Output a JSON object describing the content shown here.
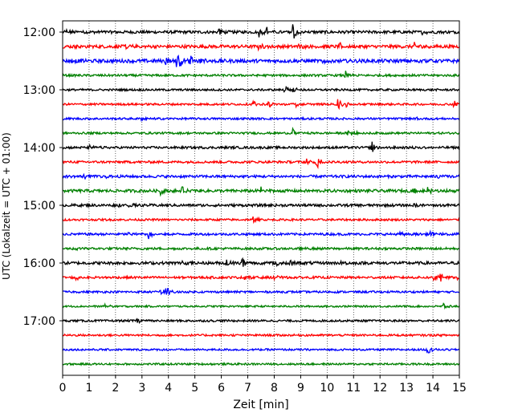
{
  "chart_data": {
    "type": "line",
    "title": "",
    "xlabel": "Zeit  [min]",
    "ylabel": "UTC (Lokalzeit = UTC + 01:00)",
    "xlim": [
      0,
      15
    ],
    "x_ticks": [
      "0",
      "1",
      "2",
      "3",
      "4",
      "5",
      "6",
      "7",
      "8",
      "9",
      "10",
      "11",
      "12",
      "13",
      "14",
      "15"
    ],
    "y_tick_labels": [
      "12:00",
      "13:00",
      "14:00",
      "15:00",
      "16:00",
      "17:00"
    ],
    "grid": "vertical dotted lines at each minute",
    "trace_start_time": "12:00",
    "trace_interval_minutes": 15,
    "trace_colors": [
      "#000000",
      "#ff0000",
      "#0000ff",
      "#008000"
    ],
    "traces": [
      {
        "start": "12:00",
        "color": "#000000",
        "noise": 0.2,
        "events": [
          {
            "t": 0.15,
            "amp": 0.35
          },
          {
            "t": 1.3,
            "amp": 0.3
          },
          {
            "t": 5.9,
            "amp": 0.6
          },
          {
            "t": 7.4,
            "amp": 0.9
          },
          {
            "t": 7.7,
            "amp": 0.8
          },
          {
            "t": 8.7,
            "amp": 1.5
          },
          {
            "t": 13.6,
            "amp": 0.4
          }
        ]
      },
      {
        "start": "12:15",
        "color": "#ff0000",
        "noise": 0.22,
        "events": [
          {
            "t": 0.5,
            "amp": 0.3
          },
          {
            "t": 2.4,
            "amp": 0.5
          },
          {
            "t": 7.4,
            "amp": 0.4
          },
          {
            "t": 8.9,
            "amp": 0.45
          },
          {
            "t": 10.5,
            "amp": 0.45
          },
          {
            "t": 13.3,
            "amp": 0.45
          }
        ]
      },
      {
        "start": "12:30",
        "color": "#0000ff",
        "noise": 0.24,
        "events": [
          {
            "t": 0.3,
            "amp": 0.3
          },
          {
            "t": 3.9,
            "amp": 0.7
          },
          {
            "t": 4.3,
            "amp": 2.2
          },
          {
            "t": 4.8,
            "amp": 1.2
          },
          {
            "t": 5.2,
            "amp": 0.6
          },
          {
            "t": 9.8,
            "amp": 0.4
          },
          {
            "t": 13.4,
            "amp": 0.3
          }
        ]
      },
      {
        "start": "12:45",
        "color": "#008000",
        "noise": 0.15,
        "events": [
          {
            "t": 10.7,
            "amp": 0.7
          }
        ]
      },
      {
        "start": "13:00",
        "color": "#000000",
        "noise": 0.14,
        "events": [
          {
            "t": 8.4,
            "amp": 0.5
          },
          {
            "t": 8.7,
            "amp": 0.45
          }
        ]
      },
      {
        "start": "13:15",
        "color": "#ff0000",
        "noise": 0.14,
        "events": [
          {
            "t": 7.2,
            "amp": 0.4
          },
          {
            "t": 7.8,
            "amp": 0.45
          },
          {
            "t": 8.8,
            "amp": 0.4
          },
          {
            "t": 10.4,
            "amp": 1.0
          },
          {
            "t": 10.7,
            "amp": 0.5
          },
          {
            "t": 14.8,
            "amp": 0.8
          }
        ]
      },
      {
        "start": "13:30",
        "color": "#0000ff",
        "noise": 0.14,
        "events": [
          {
            "t": 3.0,
            "amp": 0.3
          },
          {
            "t": 13.4,
            "amp": 0.3
          }
        ]
      },
      {
        "start": "13:45",
        "color": "#008000",
        "noise": 0.14,
        "events": [
          {
            "t": 8.7,
            "amp": 0.6
          },
          {
            "t": 10.8,
            "amp": 0.75
          },
          {
            "t": 11.0,
            "amp": 0.4
          }
        ]
      },
      {
        "start": "14:00",
        "color": "#000000",
        "noise": 0.16,
        "events": [
          {
            "t": 1.0,
            "amp": 0.3
          },
          {
            "t": 11.7,
            "amp": 0.9
          },
          {
            "t": 13.3,
            "amp": 0.35
          }
        ]
      },
      {
        "start": "14:15",
        "color": "#ff0000",
        "noise": 0.16,
        "events": [
          {
            "t": 9.2,
            "amp": 0.5
          },
          {
            "t": 9.6,
            "amp": 1.1
          }
        ]
      },
      {
        "start": "14:30",
        "color": "#0000ff",
        "noise": 0.18,
        "events": [
          {
            "t": 0.8,
            "amp": 0.3
          },
          {
            "t": 1.6,
            "amp": 0.35
          },
          {
            "t": 14.2,
            "amp": 0.3
          }
        ]
      },
      {
        "start": "14:45",
        "color": "#008000",
        "noise": 0.2,
        "events": [
          {
            "t": 3.7,
            "amp": 0.6
          },
          {
            "t": 4.5,
            "amp": 0.55
          },
          {
            "t": 7.5,
            "amp": 0.5
          },
          {
            "t": 13.3,
            "amp": 0.45
          },
          {
            "t": 13.8,
            "amp": 0.6
          }
        ]
      },
      {
        "start": "15:00",
        "color": "#000000",
        "noise": 0.18,
        "events": [
          {
            "t": 2.1,
            "amp": 0.3
          },
          {
            "t": 2.5,
            "amp": 0.3
          },
          {
            "t": 13.3,
            "amp": 0.3
          }
        ]
      },
      {
        "start": "15:15",
        "color": "#ff0000",
        "noise": 0.14,
        "events": [
          {
            "t": 7.2,
            "amp": 0.45
          }
        ]
      },
      {
        "start": "15:30",
        "color": "#0000ff",
        "noise": 0.16,
        "events": [
          {
            "t": 2.5,
            "amp": 0.3
          },
          {
            "t": 3.2,
            "amp": 0.9
          },
          {
            "t": 12.7,
            "amp": 0.35
          },
          {
            "t": 13.9,
            "amp": 0.35
          }
        ]
      },
      {
        "start": "15:45",
        "color": "#008000",
        "noise": 0.16,
        "events": [
          {
            "t": 0.5,
            "amp": 0.35
          },
          {
            "t": 8.8,
            "amp": 0.3
          }
        ]
      },
      {
        "start": "16:00",
        "color": "#000000",
        "noise": 0.2,
        "events": [
          {
            "t": 4.5,
            "amp": 0.35
          },
          {
            "t": 6.2,
            "amp": 0.6
          },
          {
            "t": 6.8,
            "amp": 0.9
          },
          {
            "t": 8.1,
            "amp": 0.7
          },
          {
            "t": 8.6,
            "amp": 0.5
          },
          {
            "t": 10.5,
            "amp": 0.3
          }
        ]
      },
      {
        "start": "16:15",
        "color": "#ff0000",
        "noise": 0.16,
        "events": [
          {
            "t": 0.5,
            "amp": 0.55
          },
          {
            "t": 6.9,
            "amp": 0.4
          },
          {
            "t": 8.0,
            "amp": 0.4
          },
          {
            "t": 14.0,
            "amp": 0.7
          },
          {
            "t": 14.3,
            "amp": 0.8
          },
          {
            "t": 14.9,
            "amp": 0.5
          }
        ]
      },
      {
        "start": "16:30",
        "color": "#0000ff",
        "noise": 0.14,
        "events": [
          {
            "t": 3.7,
            "amp": 0.8
          },
          {
            "t": 3.9,
            "amp": 0.9
          }
        ]
      },
      {
        "start": "16:45",
        "color": "#008000",
        "noise": 0.12,
        "events": [
          {
            "t": 1.6,
            "amp": 0.35
          },
          {
            "t": 14.4,
            "amp": 0.45
          }
        ]
      },
      {
        "start": "17:00",
        "color": "#000000",
        "noise": 0.14,
        "events": [
          {
            "t": 2.8,
            "amp": 0.45
          }
        ]
      },
      {
        "start": "17:15",
        "color": "#ff0000",
        "noise": 0.14,
        "events": []
      },
      {
        "start": "17:30",
        "color": "#0000ff",
        "noise": 0.13,
        "events": [
          {
            "t": 13.8,
            "amp": 0.65
          }
        ]
      },
      {
        "start": "17:45",
        "color": "#008000",
        "noise": 0.13,
        "events": []
      }
    ]
  }
}
